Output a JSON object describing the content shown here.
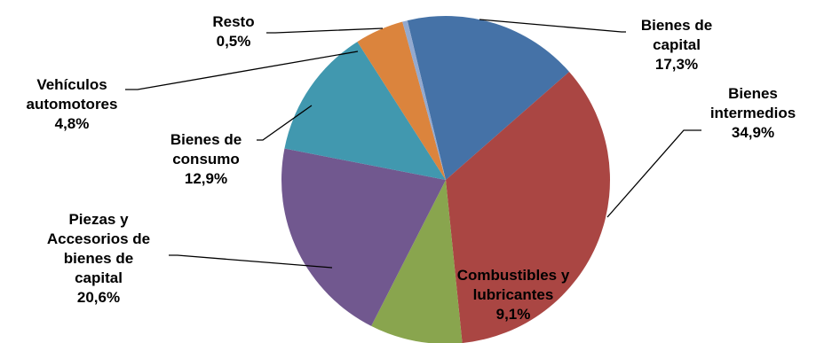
{
  "chart_data": {
    "type": "pie",
    "title": "",
    "unit": "%",
    "slices": [
      {
        "name": "Bienes de capital",
        "label_lines": [
          "Bienes de",
          "capital"
        ],
        "value": 17.3,
        "value_label": "17,3%",
        "color": "#4572A7"
      },
      {
        "name": "Bienes intermedios",
        "label_lines": [
          "Bienes",
          "intermedios"
        ],
        "value": 34.9,
        "value_label": "34,9%",
        "color": "#AA4643"
      },
      {
        "name": "Combustibles y lubricantes",
        "label_lines": [
          "Combustibles y",
          "lubricantes"
        ],
        "value": 9.1,
        "value_label": "9,1%",
        "color": "#89A54E"
      },
      {
        "name": "Piezas y Accesorios de bienes de capital",
        "label_lines": [
          "Piezas y",
          "Accesorios de",
          "bienes de",
          "capital"
        ],
        "value": 20.6,
        "value_label": "20,6%",
        "color": "#71588F"
      },
      {
        "name": "Bienes de consumo",
        "label_lines": [
          "Bienes de",
          "consumo"
        ],
        "value": 12.9,
        "value_label": "12,9%",
        "color": "#4198AF"
      },
      {
        "name": "Vehículos automotores",
        "label_lines": [
          "Vehículos",
          "automotores"
        ],
        "value": 4.8,
        "value_label": "4,8%",
        "color": "#DB843D"
      },
      {
        "name": "Resto",
        "label_lines": [
          "Resto"
        ],
        "value": 0.5,
        "value_label": "0,5%",
        "color": "#93A9CF"
      }
    ]
  }
}
